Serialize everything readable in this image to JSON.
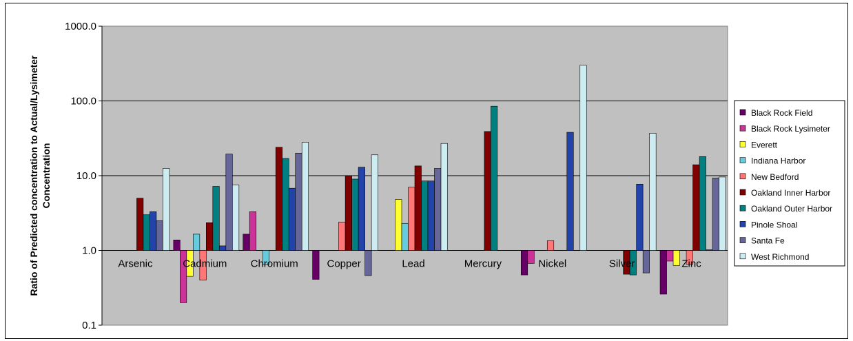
{
  "chart_data": {
    "type": "bar",
    "title": "",
    "xlabel": "",
    "ylabel_lines": [
      "Ratio of Predicted concentration to Actual/Lysimeter",
      "Concentration"
    ],
    "y_scale": "log",
    "ylim": [
      0.1,
      1000
    ],
    "y_ticks": [
      0.1,
      1,
      10,
      100,
      1000
    ],
    "y_tick_labels": [
      "0.1",
      "1.0",
      "10.0",
      "100.0",
      "1000.0"
    ],
    "bar_baseline": 1,
    "grid": true,
    "legend_position": "right",
    "plot_background": "#c0c0c0",
    "categories": [
      "Arsenic",
      "Cadmium",
      "Chromium",
      "Copper",
      "Lead",
      "Mercury",
      "Nickel",
      "Silver",
      "Zinc"
    ],
    "series": [
      {
        "name": "Black Rock Field",
        "color": "#660066",
        "values": [
          null,
          1.38,
          1.65,
          0.41,
          null,
          null,
          0.47,
          null,
          0.26
        ]
      },
      {
        "name": "Black Rock Lysimeter",
        "color": "#cc3399",
        "values": [
          null,
          0.2,
          3.3,
          null,
          null,
          null,
          0.67,
          null,
          0.72
        ]
      },
      {
        "name": "Everett",
        "color": "#ffff33",
        "values": [
          null,
          0.45,
          null,
          null,
          4.8,
          null,
          null,
          null,
          0.63
        ]
      },
      {
        "name": "Indiana Harbor",
        "color": "#66ccdd",
        "values": [
          null,
          1.65,
          0.65,
          null,
          2.3,
          null,
          null,
          null,
          null
        ]
      },
      {
        "name": "New Bedford",
        "color": "#ff7777",
        "values": [
          null,
          0.4,
          null,
          2.4,
          7.0,
          null,
          1.35,
          null,
          0.65
        ]
      },
      {
        "name": "Oakland Inner Harbor",
        "color": "#800000",
        "values": [
          5.0,
          2.35,
          24.0,
          10.0,
          13.5,
          39.0,
          null,
          0.48,
          14.0
        ]
      },
      {
        "name": "Oakland Outer Harbor",
        "color": "#008080",
        "values": [
          3.0,
          7.2,
          17.0,
          9.0,
          8.5,
          85.0,
          null,
          0.47,
          18.0
        ]
      },
      {
        "name": "Pinole Shoal",
        "color": "#2244aa",
        "values": [
          3.3,
          1.15,
          6.8,
          13.0,
          8.5,
          null,
          38.0,
          7.7,
          1.02
        ]
      },
      {
        "name": "Santa Fe",
        "color": "#666699",
        "values": [
          2.5,
          19.5,
          20.0,
          0.46,
          12.5,
          null,
          null,
          0.5,
          9.3
        ]
      },
      {
        "name": "West Richmond",
        "color": "#ccecf2",
        "values": [
          12.5,
          7.5,
          28.0,
          19.0,
          27.0,
          null,
          300.0,
          37.0,
          9.6
        ]
      }
    ]
  }
}
